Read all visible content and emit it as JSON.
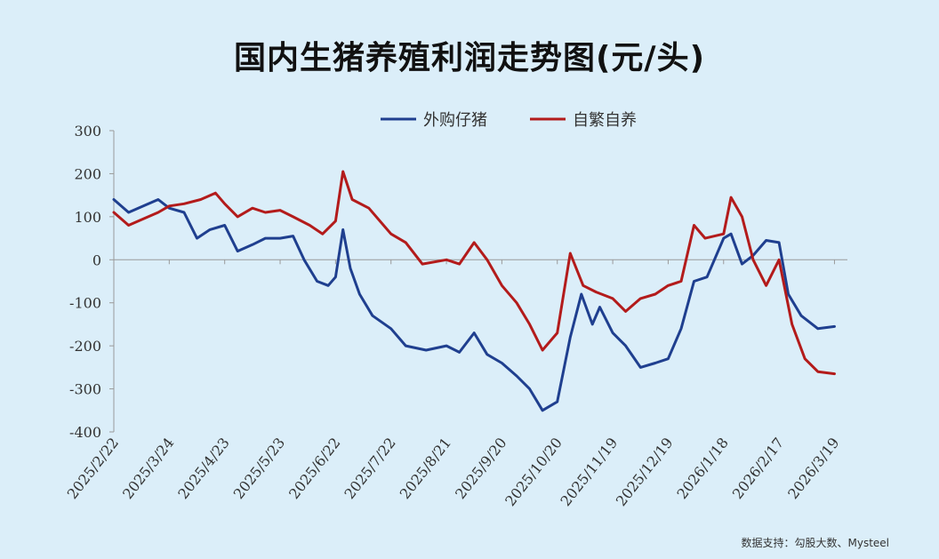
{
  "title": "国内生猪养殖利润走势图(元/头)",
  "source": "数据支持：勾股大数、Mysteel",
  "chart_data": {
    "type": "line",
    "title": "国内生猪养殖利润走势图(元/头)",
    "xlabel": "",
    "ylabel": "",
    "ylim": [
      -400,
      300
    ],
    "yticks": [
      300,
      200,
      100,
      0,
      -100,
      -200,
      -300,
      -400
    ],
    "xlim": [
      "2025/2/22",
      "2026/3/26"
    ],
    "xticks": [
      "2025/2/22",
      "2025/3/24",
      "2025/4/23",
      "2025/5/23",
      "2025/6/22",
      "2025/7/22",
      "2025/8/21",
      "2025/9/20",
      "2025/10/20",
      "2025/11/19",
      "2025/12/19",
      "2026/1/18",
      "2026/2/17",
      "2026/3/19"
    ],
    "legend_position": "top-center",
    "grid": false,
    "series": [
      {
        "name": "外购仔猪",
        "color": "#1f3f8f",
        "points": [
          [
            "2025/2/22",
            140
          ],
          [
            "2025/3/2",
            110
          ],
          [
            "2025/3/10",
            125
          ],
          [
            "2025/3/18",
            140
          ],
          [
            "2025/3/24",
            120
          ],
          [
            "2025/4/1",
            110
          ],
          [
            "2025/4/8",
            50
          ],
          [
            "2025/4/15",
            70
          ],
          [
            "2025/4/23",
            80
          ],
          [
            "2025/4/30",
            20
          ],
          [
            "2025/5/8",
            35
          ],
          [
            "2025/5/15",
            50
          ],
          [
            "2025/5/23",
            50
          ],
          [
            "2025/5/30",
            55
          ],
          [
            "2025/6/5",
            0
          ],
          [
            "2025/6/12",
            -50
          ],
          [
            "2025/6/18",
            -60
          ],
          [
            "2025/6/22",
            -40
          ],
          [
            "2025/6/26",
            70
          ],
          [
            "2025/6/30",
            -20
          ],
          [
            "2025/7/5",
            -80
          ],
          [
            "2025/7/12",
            -130
          ],
          [
            "2025/7/22",
            -160
          ],
          [
            "2025/7/30",
            -200
          ],
          [
            "2025/8/10",
            -210
          ],
          [
            "2025/8/21",
            -200
          ],
          [
            "2025/8/28",
            -215
          ],
          [
            "2025/9/5",
            -170
          ],
          [
            "2025/9/12",
            -220
          ],
          [
            "2025/9/20",
            -240
          ],
          [
            "2025/9/28",
            -270
          ],
          [
            "2025/10/5",
            -300
          ],
          [
            "2025/10/12",
            -350
          ],
          [
            "2025/10/20",
            -330
          ],
          [
            "2025/10/27",
            -180
          ],
          [
            "2025/11/2",
            -80
          ],
          [
            "2025/11/8",
            -150
          ],
          [
            "2025/11/12",
            -110
          ],
          [
            "2025/11/19",
            -170
          ],
          [
            "2025/11/26",
            -200
          ],
          [
            "2025/12/4",
            -250
          ],
          [
            "2025/12/12",
            -240
          ],
          [
            "2025/12/19",
            -230
          ],
          [
            "2025/12/26",
            -160
          ],
          [
            "2026/1/2",
            -50
          ],
          [
            "2026/1/9",
            -40
          ],
          [
            "2026/1/18",
            50
          ],
          [
            "2026/1/22",
            60
          ],
          [
            "2026/1/28",
            -10
          ],
          [
            "2026/2/3",
            10
          ],
          [
            "2026/2/10",
            45
          ],
          [
            "2026/2/17",
            40
          ],
          [
            "2026/2/22",
            -80
          ],
          [
            "2026/3/1",
            -130
          ],
          [
            "2026/3/10",
            -160
          ],
          [
            "2026/3/19",
            -155
          ]
        ]
      },
      {
        "name": "自繁自养",
        "color": "#b31b1b",
        "points": [
          [
            "2025/2/22",
            110
          ],
          [
            "2025/3/2",
            80
          ],
          [
            "2025/3/10",
            95
          ],
          [
            "2025/3/18",
            110
          ],
          [
            "2025/3/24",
            125
          ],
          [
            "2025/4/1",
            130
          ],
          [
            "2025/4/10",
            140
          ],
          [
            "2025/4/18",
            155
          ],
          [
            "2025/4/23",
            130
          ],
          [
            "2025/4/30",
            100
          ],
          [
            "2025/5/8",
            120
          ],
          [
            "2025/5/15",
            110
          ],
          [
            "2025/5/23",
            115
          ],
          [
            "2025/5/30",
            100
          ],
          [
            "2025/6/8",
            80
          ],
          [
            "2025/6/15",
            60
          ],
          [
            "2025/6/22",
            90
          ],
          [
            "2025/6/26",
            205
          ],
          [
            "2025/7/1",
            140
          ],
          [
            "2025/7/10",
            120
          ],
          [
            "2025/7/22",
            60
          ],
          [
            "2025/7/30",
            40
          ],
          [
            "2025/8/8",
            -10
          ],
          [
            "2025/8/21",
            0
          ],
          [
            "2025/8/28",
            -10
          ],
          [
            "2025/9/5",
            40
          ],
          [
            "2025/9/12",
            0
          ],
          [
            "2025/9/20",
            -60
          ],
          [
            "2025/9/28",
            -100
          ],
          [
            "2025/10/5",
            -150
          ],
          [
            "2025/10/12",
            -210
          ],
          [
            "2025/10/20",
            -170
          ],
          [
            "2025/10/27",
            15
          ],
          [
            "2025/11/3",
            -60
          ],
          [
            "2025/11/10",
            -75
          ],
          [
            "2025/11/19",
            -90
          ],
          [
            "2025/11/26",
            -120
          ],
          [
            "2025/12/4",
            -90
          ],
          [
            "2025/12/12",
            -80
          ],
          [
            "2025/12/19",
            -60
          ],
          [
            "2025/12/26",
            -50
          ],
          [
            "2026/1/2",
            80
          ],
          [
            "2026/1/8",
            50
          ],
          [
            "2026/1/18",
            60
          ],
          [
            "2026/1/22",
            145
          ],
          [
            "2026/1/28",
            100
          ],
          [
            "2026/2/3",
            0
          ],
          [
            "2026/2/10",
            -60
          ],
          [
            "2026/2/17",
            0
          ],
          [
            "2026/2/24",
            -150
          ],
          [
            "2026/3/3",
            -230
          ],
          [
            "2026/3/10",
            -260
          ],
          [
            "2026/3/19",
            -265
          ]
        ]
      }
    ]
  }
}
